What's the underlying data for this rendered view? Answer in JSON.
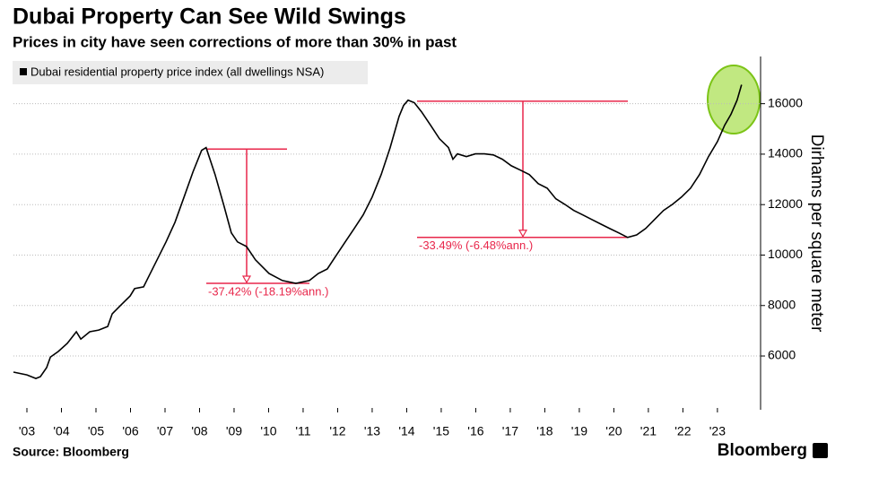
{
  "chart_data": {
    "type": "line",
    "title": "Dubai Property Can See Wild Swings",
    "subtitle": "Prices in city have seen corrections of more than 30% in past",
    "y_axis_label": "Dirhams per square meter",
    "source": "Source: Bloomberg",
    "brand": "Bloomberg",
    "x": [
      2003.11,
      2003.5,
      2003.76,
      2003.89,
      2004.07,
      2004.18,
      2004.41,
      2004.67,
      2004.93,
      2005.06,
      2005.32,
      2005.58,
      2005.84,
      2005.97,
      2006.23,
      2006.49,
      2006.62,
      2006.88,
      2007.01,
      2007.27,
      2007.53,
      2007.79,
      2008.05,
      2008.31,
      2008.56,
      2008.69,
      2008.95,
      2009.21,
      2009.42,
      2009.6,
      2009.86,
      2010.12,
      2010.51,
      2010.9,
      2011.29,
      2011.68,
      2011.94,
      2012.2,
      2012.46,
      2012.72,
      2012.98,
      2013.24,
      2013.5,
      2013.76,
      2014.02,
      2014.28,
      2014.41,
      2014.54,
      2014.72,
      2014.93,
      2015.19,
      2015.45,
      2015.71,
      2015.84,
      2015.97,
      2016.23,
      2016.49,
      2016.75,
      2017.01,
      2017.27,
      2017.53,
      2017.79,
      2018.05,
      2018.31,
      2018.57,
      2018.82,
      2019.08,
      2019.34,
      2019.6,
      2019.86,
      2020.12,
      2020.38,
      2020.64,
      2020.9,
      2021.16,
      2021.42,
      2021.68,
      2021.94,
      2022.2,
      2022.46,
      2022.72,
      2022.98,
      2023.24,
      2023.5,
      2023.71,
      2023.89,
      2024.07,
      2024.2
    ],
    "series": [
      {
        "name": "Dubai residential property price index (all dwellings NSA)",
        "color": "#000000",
        "values": [
          5360,
          5250,
          5110,
          5180,
          5540,
          5960,
          6180,
          6500,
          6960,
          6670,
          6960,
          7030,
          7170,
          7670,
          8030,
          8380,
          8670,
          8740,
          9100,
          9810,
          10520,
          11300,
          12300,
          13300,
          14150,
          14260,
          13190,
          11940,
          10880,
          10520,
          10340,
          9810,
          9270,
          8990,
          8880,
          8990,
          9270,
          9450,
          9990,
          10520,
          11050,
          11590,
          12300,
          13190,
          14260,
          15500,
          15930,
          16140,
          16040,
          15680,
          15150,
          14610,
          14260,
          13800,
          14010,
          13900,
          14010,
          14010,
          13970,
          13800,
          13540,
          13370,
          13190,
          12830,
          12650,
          12230,
          12010,
          11770,
          11590,
          11410,
          11230,
          11050,
          10880,
          10700,
          10800,
          11050,
          11410,
          11770,
          12010,
          12300,
          12650,
          13190,
          13900,
          14500,
          15150,
          15570,
          16140,
          16750
        ]
      }
    ],
    "xlim": [
      2003.11,
      2024.75
    ],
    "xticks": [
      {
        "value": 2003.5,
        "label": "'03"
      },
      {
        "value": 2004.5,
        "label": "'04"
      },
      {
        "value": 2005.5,
        "label": "'05"
      },
      {
        "value": 2006.5,
        "label": "'06"
      },
      {
        "value": 2007.5,
        "label": "'07"
      },
      {
        "value": 2008.5,
        "label": "'08"
      },
      {
        "value": 2009.5,
        "label": "'09"
      },
      {
        "value": 2010.5,
        "label": "'10"
      },
      {
        "value": 2011.5,
        "label": "'11"
      },
      {
        "value": 2012.5,
        "label": "'12"
      },
      {
        "value": 2013.5,
        "label": "'13"
      },
      {
        "value": 2014.5,
        "label": "'14"
      },
      {
        "value": 2015.5,
        "label": "'15"
      },
      {
        "value": 2016.5,
        "label": "'16"
      },
      {
        "value": 2017.5,
        "label": "'17"
      },
      {
        "value": 2018.5,
        "label": "'18"
      },
      {
        "value": 2019.5,
        "label": "'19"
      },
      {
        "value": 2020.5,
        "label": "'20"
      },
      {
        "value": 2021.5,
        "label": "'21"
      },
      {
        "value": 2022.5,
        "label": "'22"
      },
      {
        "value": 2023.5,
        "label": "'23"
      }
    ],
    "ylim": [
      3940,
      17800
    ],
    "yticks": [
      6000,
      8000,
      10000,
      12000,
      14000,
      16000
    ],
    "grid": true,
    "annotations": [
      {
        "text": "-37.42% (-18.19%ann.)",
        "peak": 14200,
        "trough": 8880,
        "color": "#e8274b"
      },
      {
        "text": "-33.49% (-6.48%ann.)",
        "peak": 16100,
        "trough": 10700,
        "color": "#e8274b"
      }
    ]
  }
}
